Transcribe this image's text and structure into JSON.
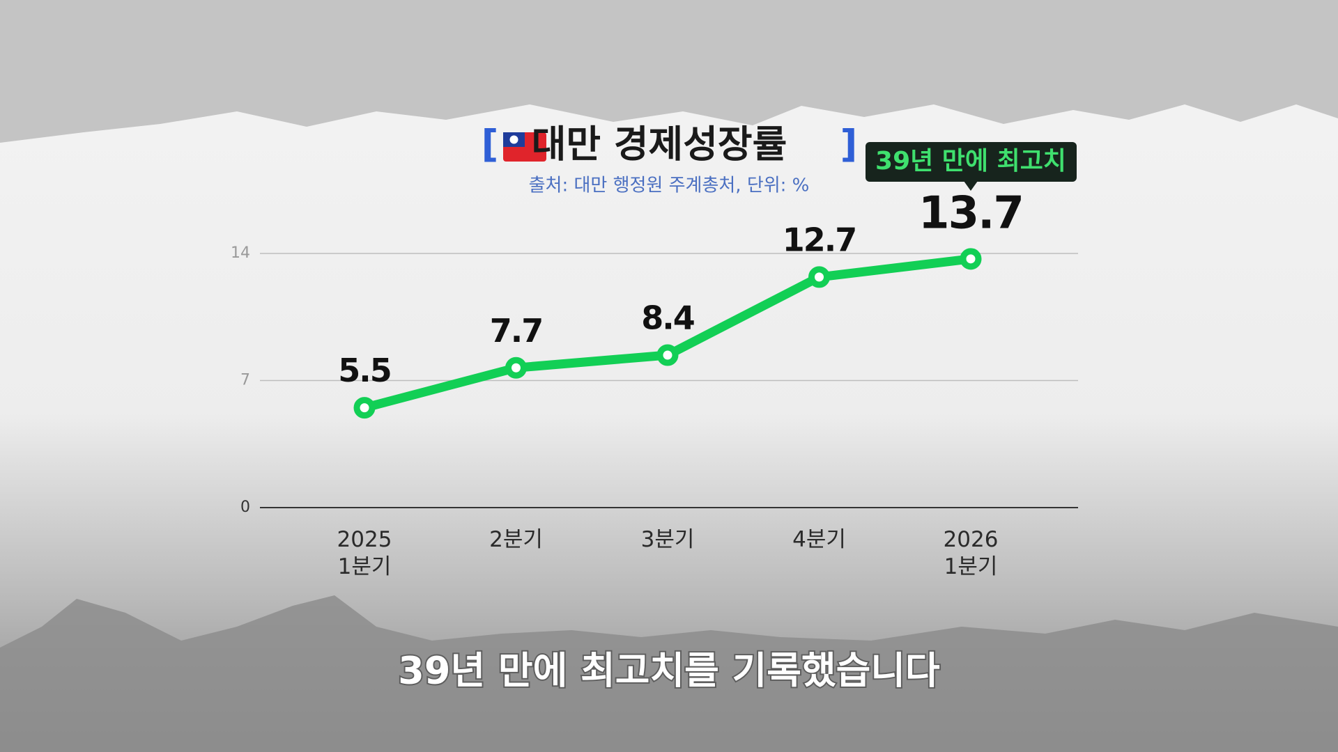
{
  "chart_data": {
    "type": "line",
    "title": "대만 경제성장률",
    "subtitle": "출처: 대만 행정원 주계총처, 단위: %",
    "categories": [
      "2025\n1분기",
      "2분기",
      "3분기",
      "4분기",
      "2026\n1분기"
    ],
    "values": [
      5.5,
      7.7,
      8.4,
      12.7,
      13.7
    ],
    "color": "#12cf55",
    "ylim": [
      0,
      14
    ],
    "yticks": [
      0,
      7,
      14
    ],
    "grid": true,
    "annotation": "39년 만에 최고치"
  },
  "caption": "39년 만에 최고치를 기록했습니다"
}
